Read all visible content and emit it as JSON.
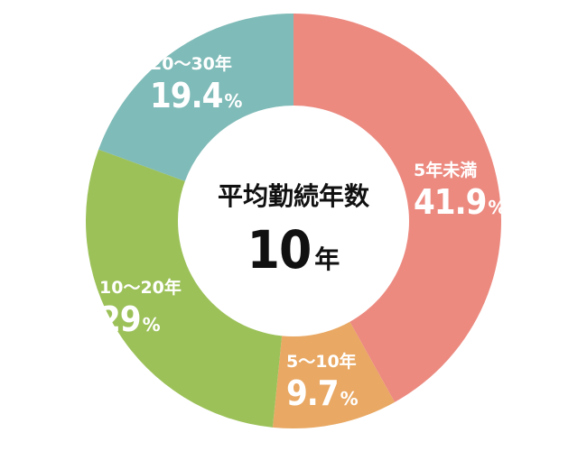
{
  "chart_data": {
    "type": "pie",
    "donut": true,
    "center": {
      "title": "平均勤続年数",
      "value": "10",
      "unit": "年"
    },
    "slices": [
      {
        "label": "5年未満",
        "value": 41.9,
        "display": "41.9",
        "color": "#EC8A80"
      },
      {
        "label": "5～10年",
        "value": 9.7,
        "display": "9.7",
        "color": "#E9A863"
      },
      {
        "label": "10～20年",
        "value": 29,
        "display": "29",
        "color": "#9CC159"
      },
      {
        "label": "20～30年",
        "value": 19.4,
        "display": "19.4",
        "color": "#7FBBB8"
      }
    ],
    "percent_sign": "%"
  }
}
